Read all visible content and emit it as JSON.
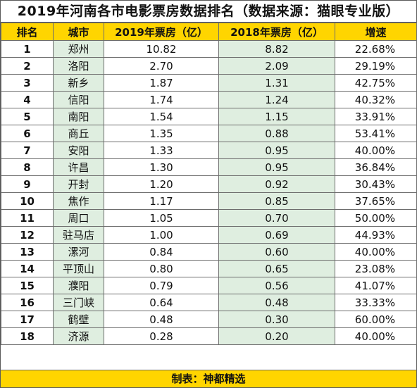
{
  "title": "2019年河南各市电影票房数据排名（数据来源：猫眼专业版）",
  "headers": [
    "排名",
    "城市",
    "2019年票房（亿）",
    "2018年票房（亿）",
    "增速"
  ],
  "rows": [
    [
      "1",
      "郑州",
      "10.82",
      "8.82",
      "22.68%"
    ],
    [
      "2",
      "洛阳",
      "2.70",
      "2.09",
      "29.19%"
    ],
    [
      "3",
      "新乡",
      "1.87",
      "1.31",
      "42.75%"
    ],
    [
      "4",
      "信阳",
      "1.74",
      "1.24",
      "40.32%"
    ],
    [
      "5",
      "南阳",
      "1.54",
      "1.15",
      "33.91%"
    ],
    [
      "6",
      "商丘",
      "1.35",
      "0.88",
      "53.41%"
    ],
    [
      "7",
      "安阳",
      "1.33",
      "0.95",
      "40.00%"
    ],
    [
      "8",
      "许昌",
      "1.30",
      "0.95",
      "36.84%"
    ],
    [
      "9",
      "开封",
      "1.20",
      "0.92",
      "30.43%"
    ],
    [
      "10",
      "焦作",
      "1.17",
      "0.85",
      "37.65%"
    ],
    [
      "11",
      "周口",
      "1.05",
      "0.70",
      "50.00%"
    ],
    [
      "12",
      "驻马店",
      "1.00",
      "0.69",
      "44.93%"
    ],
    [
      "13",
      "漯河",
      "0.84",
      "0.60",
      "40.00%"
    ],
    [
      "14",
      "平顶山",
      "0.80",
      "0.65",
      "23.08%"
    ],
    [
      "15",
      "濮阳",
      "0.79",
      "0.56",
      "41.07%"
    ],
    [
      "16",
      "三门峡",
      "0.64",
      "0.48",
      "33.33%"
    ],
    [
      "17",
      "鹤壁",
      "0.48",
      "0.30",
      "60.00%"
    ],
    [
      "18",
      "济源",
      "0.28",
      "0.20",
      "40.00%"
    ]
  ],
  "footer": "制表：神都精选",
  "colors": {
    "header_bg": "#ffd500",
    "alt_col_bg": "#dfeee0",
    "border": "#6d6d6d"
  }
}
